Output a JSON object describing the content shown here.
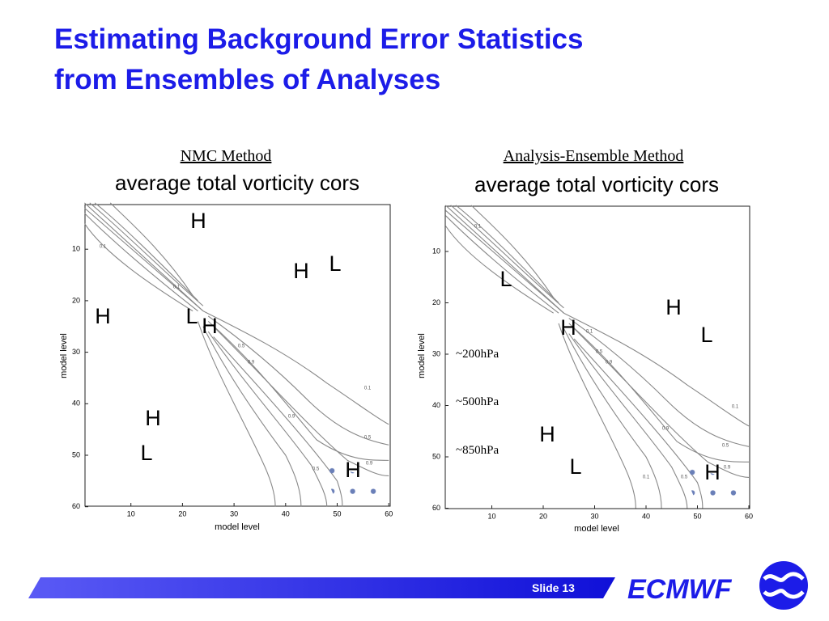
{
  "title": [
    "Estimating Background Error Statistics",
    "from Ensembles of Analyses"
  ],
  "panels": [
    {
      "heading": "NMC Method",
      "plot_title": "average total vorticity cors",
      "x_label": "model level",
      "y_label": "model level",
      "xticks": [
        10,
        20,
        30,
        40,
        50,
        60
      ],
      "yticks": [
        10,
        20,
        30,
        40,
        50,
        60
      ],
      "markers": [
        "H",
        "H",
        "L",
        "H",
        "L",
        "H",
        "H",
        "L",
        "H"
      ],
      "contour_labels": [
        "0.1",
        "0.1",
        "0.5",
        "0.9",
        "0.1",
        "0.9",
        "0.5",
        "0.9",
        "0.5"
      ]
    },
    {
      "heading": "Analysis-Ensemble Method",
      "plot_title": "average total vorticity cors",
      "x_label": "model level",
      "y_label": "model level",
      "xticks": [
        10,
        20,
        30,
        40,
        50,
        60
      ],
      "yticks": [
        10,
        20,
        30,
        40,
        50,
        60
      ],
      "markers": [
        "L",
        "H",
        "L",
        "H",
        "H",
        "L",
        "H"
      ],
      "contour_labels": [
        "0.1",
        "0.1",
        "0.5",
        "0.9",
        "0.1",
        "0.9",
        "0.5",
        "0.9",
        "0.1",
        "0.5"
      ]
    }
  ],
  "annotations": [
    "~200hPa",
    "~500hPa",
    "~850hPa"
  ],
  "footer": {
    "slide": "Slide 13",
    "brand": "ECMWF"
  }
}
